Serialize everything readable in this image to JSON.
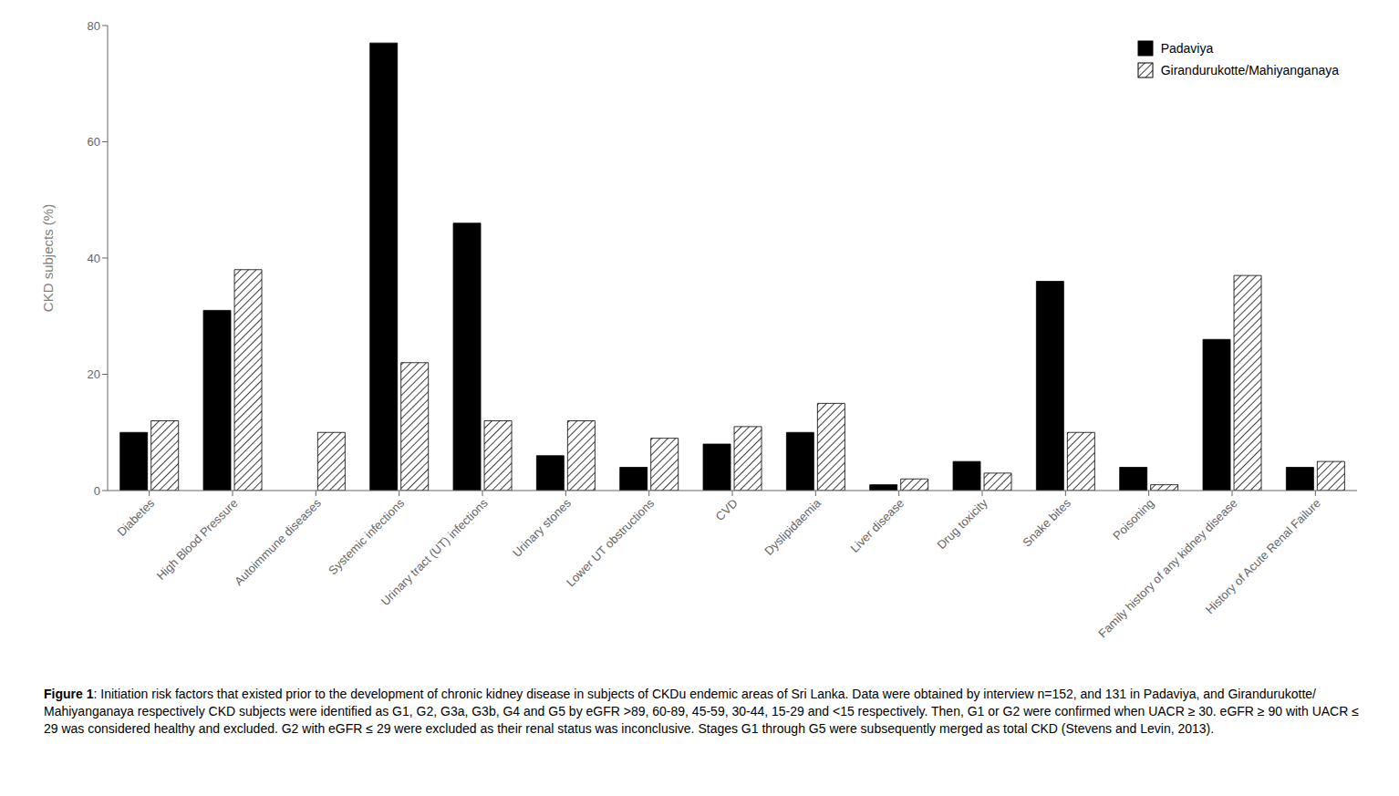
{
  "chart_data": {
    "type": "bar",
    "categories": [
      "Diabetes",
      "High Blood Pressure",
      "Autoimmune diseases",
      "Systemic infections",
      "Urinary tract (UT) infections",
      "Urinary stones",
      "Lower UT obstructions",
      "CVD",
      "Dyslipidaemia",
      "Liver disease",
      "Drug toxicity",
      "Snake bites",
      "Poisoning",
      "Family history of any kidney disease",
      "History of Acute Renal Failure"
    ],
    "series": [
      {
        "name": "Padaviya",
        "color": "#000000",
        "values": [
          10,
          31,
          0,
          77,
          46,
          6,
          4,
          8,
          10,
          1,
          5,
          36,
          4,
          26,
          4
        ]
      },
      {
        "name": "Girandurukotte/Mahiyanganaya",
        "color": "#ffffff",
        "values": [
          12,
          38,
          10,
          22,
          12,
          12,
          9,
          11,
          15,
          2,
          3,
          10,
          1,
          37,
          5
        ]
      }
    ],
    "ylabel": "CKD subjects (%)",
    "ylim": [
      0,
      80
    ],
    "yticks": [
      0,
      20,
      40,
      60,
      80
    ],
    "grid": false,
    "legend": "upper right",
    "caption_title": "Figure 1",
    "caption": ": Initiation risk factors that existed prior to the development of chronic kidney disease in subjects of CKDu endemic areas of Sri Lanka. Data were obtained by interview n=152, and 131 in Padaviya, and Girandurukotte/ Mahiyanganaya respectively CKD subjects were identified as G1, G2, G3a, G3b, G4 and G5 by eGFR >89, 60-89, 45-59, 30-44, 15-29 and <15 respectively. Then, G1 or G2 were confirmed when UACR ≥ 30. eGFR ≥ 90 with UACR ≤ 29 was considered healthy and excluded. G2 with eGFR ≤ 29 were excluded as their renal status was inconclusive. Stages G1 through G5 were subsequently merged as total CKD (Stevens and Levin, 2013)."
  }
}
